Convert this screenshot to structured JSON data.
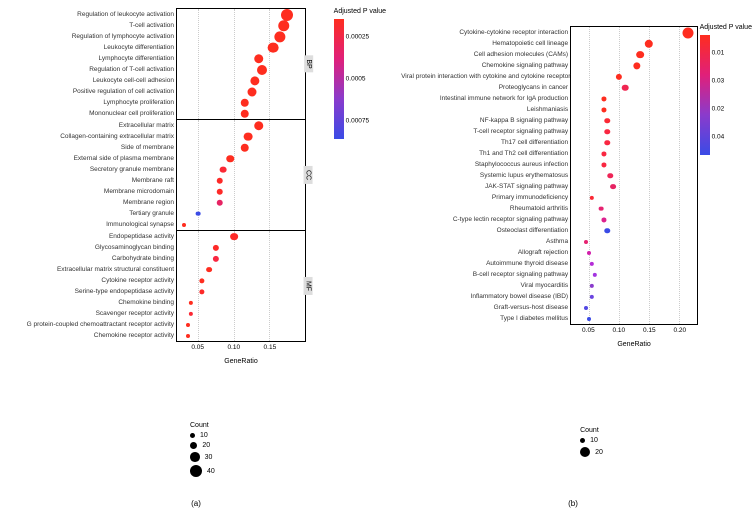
{
  "figure_width": 754,
  "figure_height": 510,
  "color_scale": {
    "low": "#fe2d1f",
    "mid1": "#e0207a",
    "mid2": "#8a3bcc",
    "high": "#3a4be6"
  },
  "panel_a": {
    "label": "(a)",
    "xaxis": {
      "label": "GeneRatio",
      "ticks": [
        0.05,
        0.1,
        0.15
      ],
      "min": 0.02,
      "max": 0.2
    },
    "colorbar": {
      "title": "Adjusted\nP value",
      "ticks": [
        0.00025,
        0.0005,
        0.00075
      ]
    },
    "count_legend": {
      "title": "Count",
      "items": [
        10,
        20,
        30,
        40
      ]
    },
    "facets": [
      {
        "name": "BP",
        "rows": [
          {
            "label": "Regulation of leukocyte activation",
            "x": 0.175,
            "count": 40,
            "color": "#fe2d1f"
          },
          {
            "label": "T-cell activation",
            "x": 0.17,
            "count": 38,
            "color": "#fe2d1f"
          },
          {
            "label": "Regulation of lymphocyte activation",
            "x": 0.165,
            "count": 37,
            "color": "#fe2d1f"
          },
          {
            "label": "Leukocyte differentiation",
            "x": 0.155,
            "count": 35,
            "color": "#fe2d1f"
          },
          {
            "label": "Lymphocyte differentiation",
            "x": 0.135,
            "count": 30,
            "color": "#fe2d1f"
          },
          {
            "label": "Regulation of T-cell activation",
            "x": 0.14,
            "count": 32,
            "color": "#fe2d1f"
          },
          {
            "label": "Leukocyte cell-cell adhesion",
            "x": 0.13,
            "count": 29,
            "color": "#fe2d1f"
          },
          {
            "label": "Positive regulation of cell activation",
            "x": 0.125,
            "count": 28,
            "color": "#fe2d1f"
          },
          {
            "label": "Lymphocyte proliferation",
            "x": 0.115,
            "count": 26,
            "color": "#fe2d1f"
          },
          {
            "label": "Mononuclear cell proliferation",
            "x": 0.115,
            "count": 26,
            "color": "#fe2d1f"
          }
        ]
      },
      {
        "name": "CC",
        "rows": [
          {
            "label": "Extracellular matrix",
            "x": 0.135,
            "count": 30,
            "color": "#fe2d1f"
          },
          {
            "label": "Collagen-containing extracellular matrix",
            "x": 0.12,
            "count": 27,
            "color": "#fe2d1f"
          },
          {
            "label": "Side of membrane",
            "x": 0.115,
            "count": 26,
            "color": "#fe2d1f"
          },
          {
            "label": "External side of plasma membrane",
            "x": 0.095,
            "count": 22,
            "color": "#fe2d1f"
          },
          {
            "label": "Secretory granule membrane",
            "x": 0.085,
            "count": 19,
            "color": "#fb2935"
          },
          {
            "label": "Membrane raft",
            "x": 0.08,
            "count": 18,
            "color": "#fd2a28"
          },
          {
            "label": "Membrane microdomain",
            "x": 0.08,
            "count": 18,
            "color": "#fd2a28"
          },
          {
            "label": "Membrane region",
            "x": 0.08,
            "count": 18,
            "color": "#e62463"
          },
          {
            "label": "Tertiary granule",
            "x": 0.05,
            "count": 11,
            "color": "#3a4be6"
          },
          {
            "label": "Immunological synapse",
            "x": 0.03,
            "count": 8,
            "color": "#fe2d1f"
          }
        ]
      },
      {
        "name": "MF",
        "rows": [
          {
            "label": "Endopeptidase activity",
            "x": 0.1,
            "count": 23,
            "color": "#fd2a28"
          },
          {
            "label": "Glycosaminoglycan binding",
            "x": 0.075,
            "count": 17,
            "color": "#fd2a28"
          },
          {
            "label": "Carbohydrate binding",
            "x": 0.075,
            "count": 17,
            "color": "#f92741"
          },
          {
            "label": "Extracellular matrix structural constituent",
            "x": 0.065,
            "count": 15,
            "color": "#fe2d1f"
          },
          {
            "label": "Cytokine receptor activity",
            "x": 0.055,
            "count": 13,
            "color": "#fe2d1f"
          },
          {
            "label": "Serine-type endopeptidase activity",
            "x": 0.055,
            "count": 13,
            "color": "#fd2a28"
          },
          {
            "label": "Chemokine binding",
            "x": 0.04,
            "count": 9,
            "color": "#fe2d1f"
          },
          {
            "label": "Scavenger receptor activity",
            "x": 0.04,
            "count": 9,
            "color": "#fb2935"
          },
          {
            "label": "G protein-coupled chemoattractant receptor activity",
            "x": 0.035,
            "count": 8,
            "color": "#fe2d1f"
          },
          {
            "label": "Chemokine receptor activity",
            "x": 0.035,
            "count": 8,
            "color": "#fe2d1f"
          }
        ]
      }
    ]
  },
  "panel_b": {
    "label": "(b)",
    "xaxis": {
      "label": "GeneRatio",
      "ticks": [
        0.05,
        0.1,
        0.15,
        0.2
      ],
      "min": 0.02,
      "max": 0.23
    },
    "colorbar": {
      "title": "Adjusted\nP value",
      "ticks": [
        0.01,
        0.03,
        0.02,
        0.04
      ]
    },
    "count_legend": {
      "title": "Count",
      "items": [
        10,
        20
      ]
    },
    "rows": [
      {
        "label": "Cytokine-cytokine receptor interaction",
        "x": 0.215,
        "count": 25,
        "color": "#fe2d1f"
      },
      {
        "label": "Hematopoietic cell lineage",
        "x": 0.15,
        "count": 18,
        "color": "#fe2d1f"
      },
      {
        "label": "Cell adhesion molecules (CAMs)",
        "x": 0.135,
        "count": 16,
        "color": "#fe2d1f"
      },
      {
        "label": "Chemokine signaling pathway",
        "x": 0.13,
        "count": 15,
        "color": "#fe2d1f"
      },
      {
        "label": "Viral protein interaction with cytokine and cytokine receptor",
        "x": 0.1,
        "count": 12,
        "color": "#fe2d1f"
      },
      {
        "label": "Proteoglycans in cancer",
        "x": 0.11,
        "count": 13,
        "color": "#f02652"
      },
      {
        "label": "Intestinal immune network for IgA production",
        "x": 0.075,
        "count": 9,
        "color": "#fe2d1f"
      },
      {
        "label": "Leishmaniasis",
        "x": 0.075,
        "count": 9,
        "color": "#fe2d1f"
      },
      {
        "label": "NF-kappa B signaling pathway",
        "x": 0.08,
        "count": 10,
        "color": "#fb2935"
      },
      {
        "label": "T-cell receptor signaling pathway",
        "x": 0.08,
        "count": 10,
        "color": "#f92741"
      },
      {
        "label": "Th17 cell differentiation",
        "x": 0.08,
        "count": 10,
        "color": "#f92741"
      },
      {
        "label": "Th1 and Th2 cell differentiation",
        "x": 0.075,
        "count": 9,
        "color": "#f92741"
      },
      {
        "label": "Staphylococcus aureus infection",
        "x": 0.075,
        "count": 9,
        "color": "#f92741"
      },
      {
        "label": "Systemic lupus erythematosus",
        "x": 0.085,
        "count": 10,
        "color": "#ee2557"
      },
      {
        "label": "JAK-STAT signaling pathway",
        "x": 0.09,
        "count": 11,
        "color": "#e62463"
      },
      {
        "label": "Primary immunodeficiency",
        "x": 0.055,
        "count": 7,
        "color": "#fb2935"
      },
      {
        "label": "Rheumatoid arthritis",
        "x": 0.07,
        "count": 8,
        "color": "#e62371"
      },
      {
        "label": "C-type lectin receptor signaling pathway",
        "x": 0.075,
        "count": 9,
        "color": "#dd218e"
      },
      {
        "label": "Osteoclast differentiation",
        "x": 0.08,
        "count": 10,
        "color": "#3a4be6"
      },
      {
        "label": "Asthma",
        "x": 0.045,
        "count": 6,
        "color": "#e62371"
      },
      {
        "label": "Allograft rejection",
        "x": 0.05,
        "count": 6,
        "color": "#d21fab"
      },
      {
        "label": "Autoimmune thyroid disease",
        "x": 0.055,
        "count": 7,
        "color": "#b52dd7"
      },
      {
        "label": "B-cell receptor signaling pathway",
        "x": 0.06,
        "count": 7,
        "color": "#a335e0"
      },
      {
        "label": "Viral myocarditis",
        "x": 0.055,
        "count": 7,
        "color": "#8a3bcc"
      },
      {
        "label": "Inflammatory bowel disease (IBD)",
        "x": 0.055,
        "count": 7,
        "color": "#6a44e0"
      },
      {
        "label": "Graft-versus-host disease",
        "x": 0.045,
        "count": 6,
        "color": "#5248e3"
      },
      {
        "label": "Type I diabetes mellitus",
        "x": 0.05,
        "count": 6,
        "color": "#3a4be6"
      }
    ]
  }
}
